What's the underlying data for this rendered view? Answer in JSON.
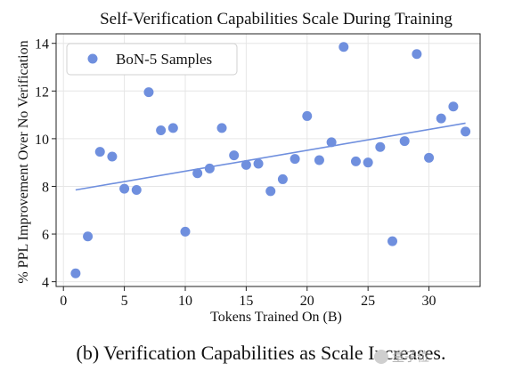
{
  "chart_data": {
    "type": "scatter",
    "title": "Self-Verification Capabilities Scale During Training",
    "xlabel": "Tokens Trained On (B)",
    "ylabel": "% PPL Improvement Over No Verification",
    "xlim": [
      -0.6,
      34.2
    ],
    "ylim": [
      3.8,
      14.4
    ],
    "xticks": [
      0,
      5,
      10,
      15,
      20,
      25,
      30
    ],
    "yticks": [
      4,
      6,
      8,
      10,
      12,
      14
    ],
    "grid": true,
    "legend_position": "top-left",
    "series": [
      {
        "name": "BoN-5 Samples",
        "color": "#6f8fde",
        "x": [
          1,
          2,
          3,
          4,
          5,
          6,
          7,
          8,
          9,
          10,
          11,
          12,
          13,
          14,
          15,
          16,
          17,
          18,
          19,
          20,
          21,
          22,
          23,
          24,
          25,
          26,
          27,
          28,
          29,
          30,
          31,
          32,
          33
        ],
        "y": [
          4.35,
          5.9,
          9.45,
          9.25,
          7.9,
          7.85,
          11.95,
          10.35,
          10.45,
          6.1,
          8.55,
          8.75,
          10.45,
          9.3,
          8.9,
          8.95,
          7.8,
          8.3,
          9.15,
          10.95,
          9.1,
          9.85,
          13.85,
          9.05,
          9.0,
          9.65,
          5.7,
          9.9,
          13.55,
          9.2,
          10.85,
          11.35,
          10.3
        ]
      }
    ],
    "trendline": {
      "color": "#6f8fde",
      "x": [
        1,
        33
      ],
      "y": [
        7.85,
        10.65
      ]
    }
  },
  "caption": "(b) Verification Capabilities as Scale Increases.",
  "watermark": "量子位"
}
